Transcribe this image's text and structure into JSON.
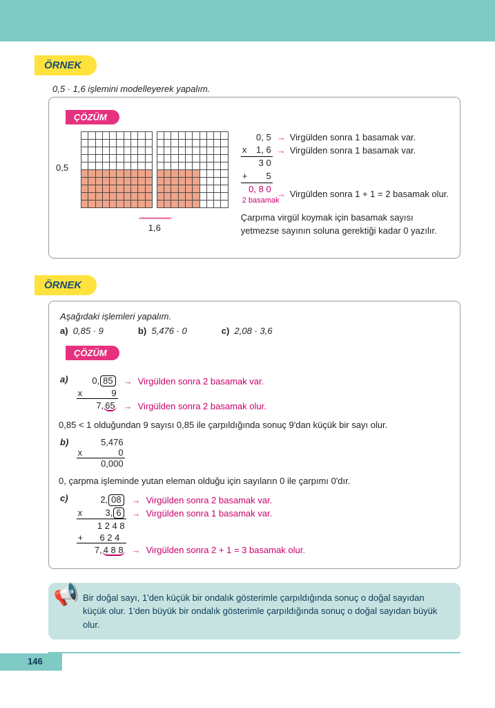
{
  "labels": {
    "ornek": "ÖRNEK",
    "cozum": "ÇÖZÜM"
  },
  "ex1": {
    "intro": "0,5 · 1,6 işlemini modelleyerek yapalım.",
    "side_label": "0,5",
    "bottom_label": "1,6",
    "grid": {
      "rows": 10,
      "cols": 10,
      "shaded_rows_from": 5,
      "second_cols_shaded": 6
    },
    "calc": {
      "l1": "0, 5",
      "l2": "1, 6",
      "l3": "3 0",
      "l4": "5",
      "result": "0, 8 0",
      "note": "2 basamak"
    },
    "annot": {
      "a1": "Virgülden sonra 1 basamak var.",
      "a2": "Virgülden sonra 1 basamak var.",
      "a3": "Virgülden sonra 1 + 1 = 2 basamak olur."
    },
    "tail": "Çarpıma virgül koymak için basamak sayısı yetmezse sayının soluna gerektiği kadar 0 yazılır."
  },
  "ex2": {
    "intro": "Aşağıdaki işlemleri yapalım.",
    "qa": "0,85 · 9",
    "qb": "5,476 · 0",
    "qc": "2,08 · 3,6",
    "a": {
      "l1_pre": "0,",
      "l1_box": "85",
      "l2": "9",
      "res_pre": "7,",
      "res_u": "65",
      "n1": "Virgülden sonra 2 basamak var.",
      "n2": "Virgülden sonra 2 basamak olur.",
      "expl": "0,85 < 1 olduğundan 9 sayısı 0,85 ile çarpıldığında sonuç 9'dan küçük bir sayı olur."
    },
    "b": {
      "l1": "5,476",
      "l2": "0",
      "res": "0,000",
      "expl": "0, çarpma işleminde yutan eleman olduğu için sayıların 0 ile çarpımı 0'dır."
    },
    "c": {
      "l1_pre": "2,",
      "l1_box": "08",
      "l2_pre": "3,",
      "l2_box": "6",
      "m1": "1 2 4 8",
      "m2": "6 2 4",
      "res_pre": "7,",
      "res_u": "4 8 8",
      "n1": "Virgülden sonra 2 basamak var.",
      "n2": "Virgülden sonra 1 basamak var.",
      "n3": "Virgülden sonra 2 + 1 = 3 basamak olur."
    }
  },
  "note": "Bir doğal sayı, 1'den küçük bir ondalık gösterimle çarpıldığında sonuç o doğal sayıdan küçük olur. 1'den büyük bir ondalık gösterimle çarpıldığında sonuç o doğal sayıdan büyük olur.",
  "page": "146",
  "colors": {
    "accent": "#7fcac4",
    "pink": "#c9006b",
    "yellow": "#ffe23d",
    "shade": "#f0a489"
  }
}
